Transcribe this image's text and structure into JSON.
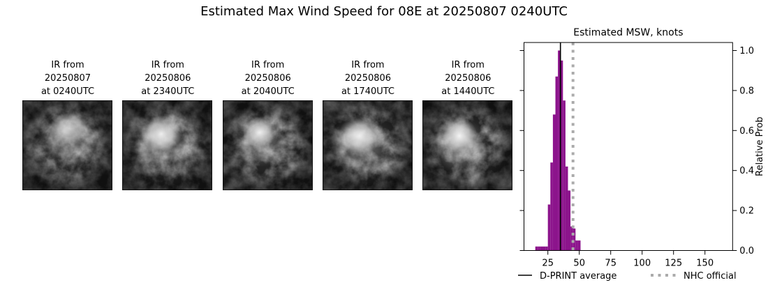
{
  "figure": {
    "title": "Estimated Max Wind Speed for 08E at 20250807 0240UTC"
  },
  "panels": [
    {
      "caption": [
        "IR from",
        "20250807",
        "at 0240UTC"
      ]
    },
    {
      "caption": [
        "IR from",
        "20250806",
        "at 2340UTC"
      ]
    },
    {
      "caption": [
        "IR from",
        "20250806",
        "at 2040UTC"
      ]
    },
    {
      "caption": [
        "IR from",
        "20250806",
        "at 1740UTC"
      ]
    },
    {
      "caption": [
        "IR from",
        "20250806",
        "at 1440UTC"
      ]
    }
  ],
  "chart_data": {
    "type": "histogram",
    "title": "Estimated MSW, knots",
    "xlabel": "",
    "ylabel": "Relative Prob",
    "xlim": [
      6,
      172
    ],
    "ylim": [
      0,
      1.04
    ],
    "xticks": [
      25,
      50,
      75,
      100,
      125,
      150
    ],
    "yticks": [
      0.0,
      0.2,
      0.4,
      0.6,
      0.8,
      1.0
    ],
    "grid": false,
    "bin_width": 2,
    "bins": [
      {
        "center": 16,
        "height": 0.02
      },
      {
        "center": 18,
        "height": 0.02
      },
      {
        "center": 20,
        "height": 0.02
      },
      {
        "center": 22,
        "height": 0.02
      },
      {
        "center": 24,
        "height": 0.02
      },
      {
        "center": 26,
        "height": 0.23
      },
      {
        "center": 28,
        "height": 0.44
      },
      {
        "center": 30,
        "height": 0.68
      },
      {
        "center": 32,
        "height": 0.87
      },
      {
        "center": 34,
        "height": 1.0
      },
      {
        "center": 36,
        "height": 0.95
      },
      {
        "center": 38,
        "height": 0.75
      },
      {
        "center": 40,
        "height": 0.42
      },
      {
        "center": 42,
        "height": 0.3
      },
      {
        "center": 44,
        "height": 0.12
      },
      {
        "center": 46,
        "height": 0.11
      },
      {
        "center": 48,
        "height": 0.05
      },
      {
        "center": 50,
        "height": 0.05
      }
    ],
    "dprint_average": 35,
    "nhc_official": 45,
    "legend": [
      {
        "label": "D-PRINT average",
        "style": "solid-black"
      },
      {
        "label": "NHC official",
        "style": "dotted-gray"
      }
    ],
    "legend_position": "below-axes"
  },
  "colors": {
    "bar": "#8c148c",
    "dprint_line": "#000000",
    "nhc_line": "#ababab",
    "text": "#000000",
    "background": "#ffffff",
    "ir_base": "#242424"
  }
}
